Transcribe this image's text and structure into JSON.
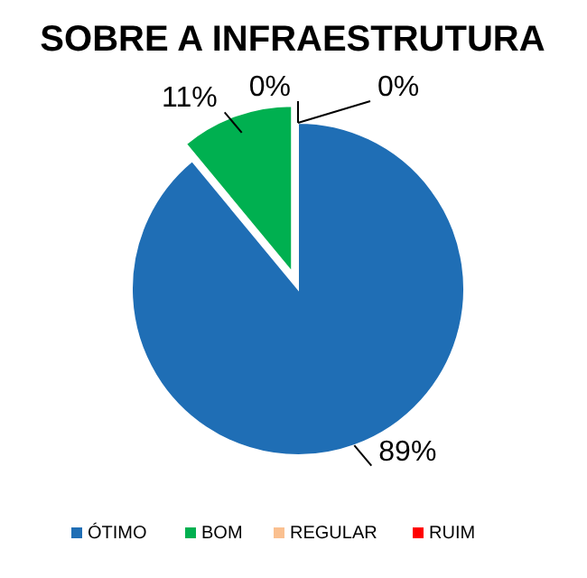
{
  "chart_data": {
    "type": "pie",
    "title": "SOBRE A INFRAESTRUTURA",
    "categories": [
      "ÓTIMO",
      "BOM",
      "REGULAR",
      "RUIM"
    ],
    "values": [
      89,
      11,
      0,
      0
    ],
    "colors": [
      "#1f6eb5",
      "#00b050",
      "#fac090",
      "#ff0000"
    ],
    "value_labels": [
      "89%",
      "11%",
      "0%",
      "0%"
    ],
    "legend": "bottom"
  }
}
